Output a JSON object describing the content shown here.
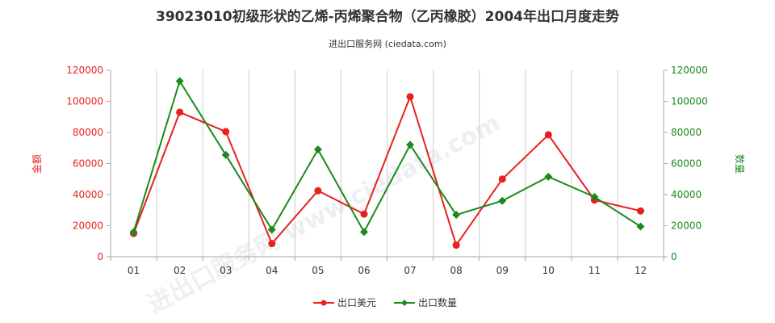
{
  "chart_data": {
    "type": "line",
    "title": "39023010初级形状的乙烯-丙烯聚合物（乙丙橡胶）2004年出口月度走势",
    "subtitle": "进出口服务网 (ciedata.com)",
    "watermark": "进出口服务网 www.ciedata.com",
    "categories": [
      "01",
      "02",
      "03",
      "04",
      "05",
      "06",
      "07",
      "08",
      "09",
      "10",
      "11",
      "12"
    ],
    "left_axis": {
      "label": "金额",
      "ylim": [
        0,
        120000
      ],
      "ticks": [
        "0",
        "20000",
        "40000",
        "60000",
        "80000",
        "100000",
        "120000"
      ],
      "color": "#e8211f"
    },
    "right_axis": {
      "label": "数量",
      "ylim": [
        0,
        120000
      ],
      "ticks": [
        "0",
        "20000",
        "40000",
        "60000",
        "80000",
        "100000",
        "120000"
      ],
      "color": "#1a8a1a"
    },
    "series": [
      {
        "name": "出口美元",
        "axis": "left",
        "color": "#e8211f",
        "marker": "circle",
        "values": [
          15000,
          93000,
          80500,
          8500,
          42500,
          27500,
          103000,
          7500,
          50000,
          78500,
          36500,
          29500
        ]
      },
      {
        "name": "出口数量",
        "axis": "right",
        "color": "#1a8a1a",
        "marker": "diamond",
        "values": [
          16000,
          113000,
          65500,
          17500,
          69000,
          16000,
          72000,
          27000,
          36000,
          51500,
          38500,
          19500
        ]
      }
    ],
    "grid": {
      "vertical": true,
      "horizontal": false
    },
    "legend": {
      "position": "bottom-center"
    }
  }
}
